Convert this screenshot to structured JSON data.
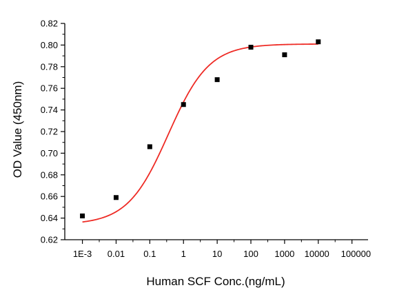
{
  "chart_data": {
    "type": "scatter",
    "title": "",
    "xlabel": "Human SCF Conc.(ng/mL)",
    "ylabel": "OD Value (450nm)",
    "x_scale": "log",
    "x_ticks": [
      {
        "value": 0.001,
        "label": "1E-3"
      },
      {
        "value": 0.01,
        "label": "0.01"
      },
      {
        "value": 0.1,
        "label": "0.1"
      },
      {
        "value": 1,
        "label": "1"
      },
      {
        "value": 10,
        "label": "10"
      },
      {
        "value": 100,
        "label": "100"
      },
      {
        "value": 1000,
        "label": "1000"
      },
      {
        "value": 10000,
        "label": "10000"
      },
      {
        "value": 100000,
        "label": "100000"
      }
    ],
    "y_ticks": [
      {
        "value": 0.62,
        "label": "0.62"
      },
      {
        "value": 0.64,
        "label": "0.64"
      },
      {
        "value": 0.66,
        "label": "0.66"
      },
      {
        "value": 0.68,
        "label": "0.68"
      },
      {
        "value": 0.7,
        "label": "0.70"
      },
      {
        "value": 0.72,
        "label": "0.72"
      },
      {
        "value": 0.74,
        "label": "0.74"
      },
      {
        "value": 0.76,
        "label": "0.76"
      },
      {
        "value": 0.78,
        "label": "0.78"
      },
      {
        "value": 0.8,
        "label": "0.80"
      },
      {
        "value": 0.82,
        "label": "0.82"
      }
    ],
    "xlim": [
      0.0003,
      300000
    ],
    "ylim": [
      0.62,
      0.82
    ],
    "grid": false,
    "legend": "none",
    "series": [
      {
        "kind": "points",
        "marker": "square",
        "color": "#000000",
        "x": [
          0.001,
          0.01,
          0.1,
          1,
          10,
          100,
          1000,
          10000
        ],
        "y": [
          0.642,
          0.659,
          0.706,
          0.745,
          0.768,
          0.798,
          0.791,
          0.803
        ]
      },
      {
        "kind": "fit-curve",
        "model": "logistic-log10",
        "color": "#ee2a24",
        "x_range": [
          0.001,
          10000
        ],
        "params": {
          "bottom": 0.634,
          "top": 0.801,
          "log10_ec50": -0.45,
          "hill": 0.72
        }
      }
    ]
  }
}
